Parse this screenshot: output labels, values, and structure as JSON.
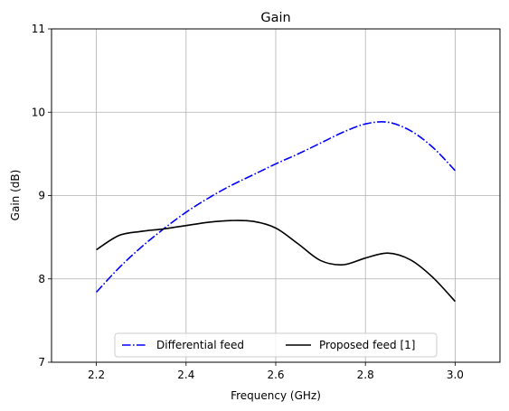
{
  "chart_data": {
    "type": "line",
    "title": "Gain",
    "xlabel": "Frequency (GHz)",
    "ylabel": "Gain (dB)",
    "xlim": [
      2.1,
      3.1
    ],
    "ylim": [
      7,
      11
    ],
    "xticks": [
      2.2,
      2.4,
      2.6,
      2.8,
      3.0
    ],
    "xtick_labels": [
      "2.2",
      "2.4",
      "2.6",
      "2.8",
      "3.0"
    ],
    "yticks": [
      7,
      8,
      9,
      10,
      11
    ],
    "ytick_labels": [
      "7",
      "8",
      "9",
      "10",
      "11"
    ],
    "grid": true,
    "legend": "lower-center",
    "series": [
      {
        "name": "Differential feed",
        "color": "#0000ff",
        "style": "dashdot",
        "x": [
          2.2,
          2.25,
          2.3,
          2.35,
          2.4,
          2.45,
          2.5,
          2.55,
          2.6,
          2.65,
          2.7,
          2.75,
          2.8,
          2.85,
          2.9,
          2.95,
          3.0
        ],
        "y": [
          7.84,
          8.13,
          8.38,
          8.6,
          8.8,
          8.97,
          9.12,
          9.25,
          9.38,
          9.5,
          9.63,
          9.76,
          9.86,
          9.88,
          9.78,
          9.58,
          9.3
        ]
      },
      {
        "name": "Proposed feed [1]",
        "color": "#000000",
        "style": "solid",
        "x": [
          2.2,
          2.25,
          2.3,
          2.35,
          2.4,
          2.45,
          2.5,
          2.55,
          2.6,
          2.65,
          2.7,
          2.75,
          2.8,
          2.85,
          2.9,
          2.95,
          3.0
        ],
        "y": [
          8.35,
          8.52,
          8.57,
          8.6,
          8.64,
          8.68,
          8.7,
          8.69,
          8.61,
          8.42,
          8.22,
          8.17,
          8.25,
          8.31,
          8.23,
          8.02,
          7.73
        ]
      }
    ]
  }
}
